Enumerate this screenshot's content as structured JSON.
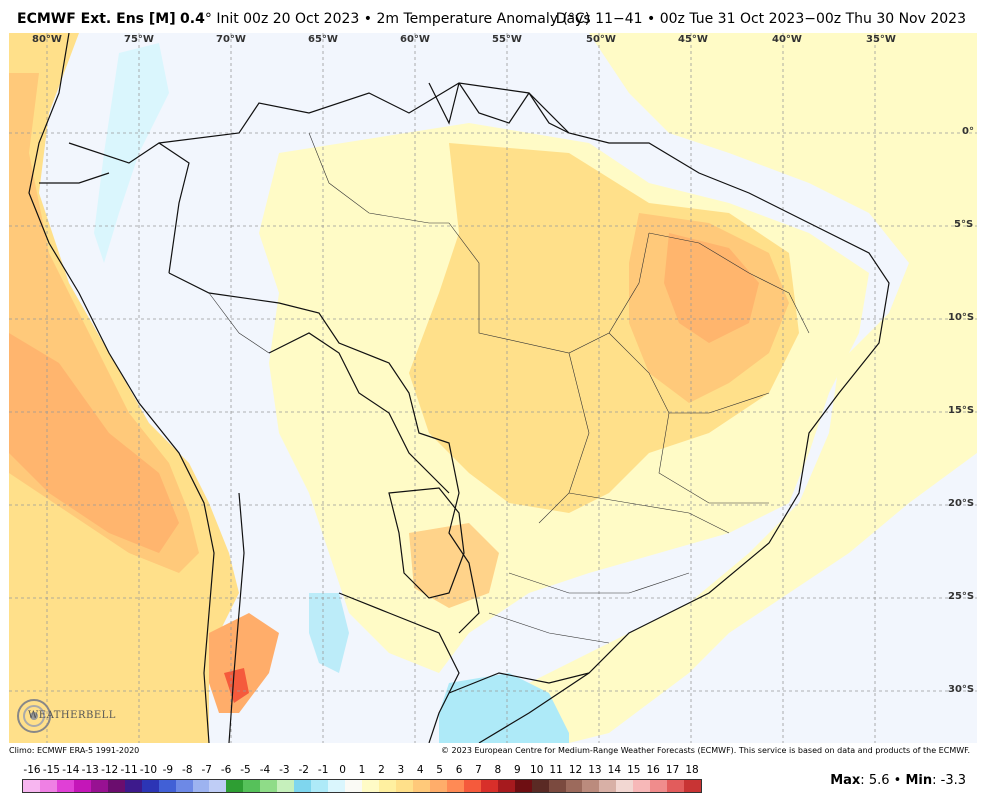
{
  "header": {
    "model": "ECMWF Ext. Ens [M]",
    "res": "0.4",
    "deg": "°",
    "init": "Init 00z 20 Oct 2023",
    "sep": "•",
    "variable": "2m Temperature Anomaly (°C)",
    "days": "Days 11−41",
    "period": "00z Tue 31 Oct 2023−00z Thu 30 Nov 2023"
  },
  "longitude_labels": [
    "80°W",
    "75°W",
    "70°W",
    "65°W",
    "60°W",
    "55°W",
    "50°W",
    "45°W",
    "40°W",
    "35°W"
  ],
  "latitude_labels": [
    "0°",
    "5°S",
    "10°S",
    "15°S",
    "20°S",
    "25°S",
    "30°S"
  ],
  "credits": {
    "climo": "Climo: ECMWF ERA-5 1991-2020",
    "copyright": "© 2023 European Centre for Medium-Range Weather Forecasts (ECMWF). This service is based on data and products of the ECMWF."
  },
  "logo": {
    "text": "WEATHERBELL"
  },
  "colorbar": {
    "labels": [
      "-16",
      "-15",
      "-14",
      "-13",
      "-12",
      "-11",
      "-10",
      "-9",
      "-8",
      "-7",
      "-6",
      "-5",
      "-4",
      "-3",
      "-2",
      "-1",
      "0",
      "1",
      "2",
      "3",
      "4",
      "5",
      "6",
      "7",
      "8",
      "9",
      "10",
      "11",
      "12",
      "13",
      "14",
      "15",
      "16",
      "17",
      "18"
    ],
    "colors": [
      "#f7b6f0",
      "#ef80e4",
      "#e040d6",
      "#c416b8",
      "#981192",
      "#6b0d6e",
      "#3d1a8c",
      "#2c35b5",
      "#4160d6",
      "#6d89e6",
      "#9db3f0",
      "#bfcdf6",
      "#2e9e33",
      "#56c15a",
      "#8fdc88",
      "#c6f0bc",
      "#7fd6ee",
      "#aeeaf8",
      "#daf6fd",
      "#fafaf5",
      "#fffbc6",
      "#fff0a0",
      "#ffe08a",
      "#ffc97a",
      "#ffad6a",
      "#ff8a55",
      "#f55a3c",
      "#d82f2a",
      "#a61a1e",
      "#6e0e12",
      "#5a2a24",
      "#7b4a3f",
      "#9c6a5c",
      "#bb8b7d",
      "#d8b0a6",
      "#f2d7d2",
      "#f7b8b8",
      "#f08c8c",
      "#e25c5c",
      "#c83434"
    ]
  },
  "stats": {
    "max_label": "Max",
    "max_value": "5.6",
    "sep": "•",
    "min_label": "Min",
    "min_value": "-3.3"
  }
}
